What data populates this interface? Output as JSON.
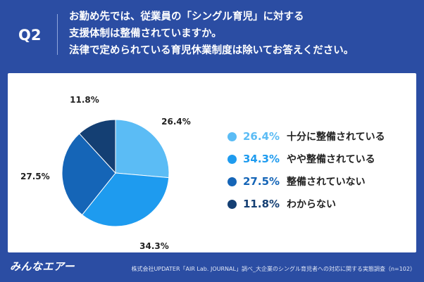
{
  "header": {
    "q_label": "Q2",
    "question_lines": [
      "お勤め先では、従業員の「シングル育児」に対する",
      "支援体制は整備されていますか。",
      "法律で定められている育児休業制度は除いてお答えください。"
    ]
  },
  "chart_data": {
    "type": "pie",
    "title": "",
    "start_angle_deg": 0,
    "direction": "clockwise",
    "slices": [
      {
        "name": "十分に整備されている",
        "value": 26.4,
        "label": "26.4%",
        "color": "#5bbcf5"
      },
      {
        "name": "やや整備されている",
        "value": 34.3,
        "label": "34.3%",
        "color": "#1e9bef"
      },
      {
        "name": "整備されていない",
        "value": 27.5,
        "label": "27.5%",
        "color": "#1565b7"
      },
      {
        "name": "わからない",
        "value": 11.8,
        "label": "11.8%",
        "color": "#143f73"
      }
    ],
    "legend_position": "right"
  },
  "legend": [
    {
      "pct": "26.4%",
      "text": "十分に整備されている",
      "color": "#5bbcf5"
    },
    {
      "pct": "34.3%",
      "text": "やや整備されている",
      "color": "#1e9bef"
    },
    {
      "pct": "27.5%",
      "text": "整備されていない",
      "color": "#1565b7"
    },
    {
      "pct": "11.8%",
      "text": "わからない",
      "color": "#143f73"
    }
  ],
  "footer": {
    "logo": "みんなエアー",
    "source": "株式会社UPDATER「AIR Lab. JOURNAL」調べ_大企業のシングル育児者への対応に関する実態調査（n=102）"
  }
}
